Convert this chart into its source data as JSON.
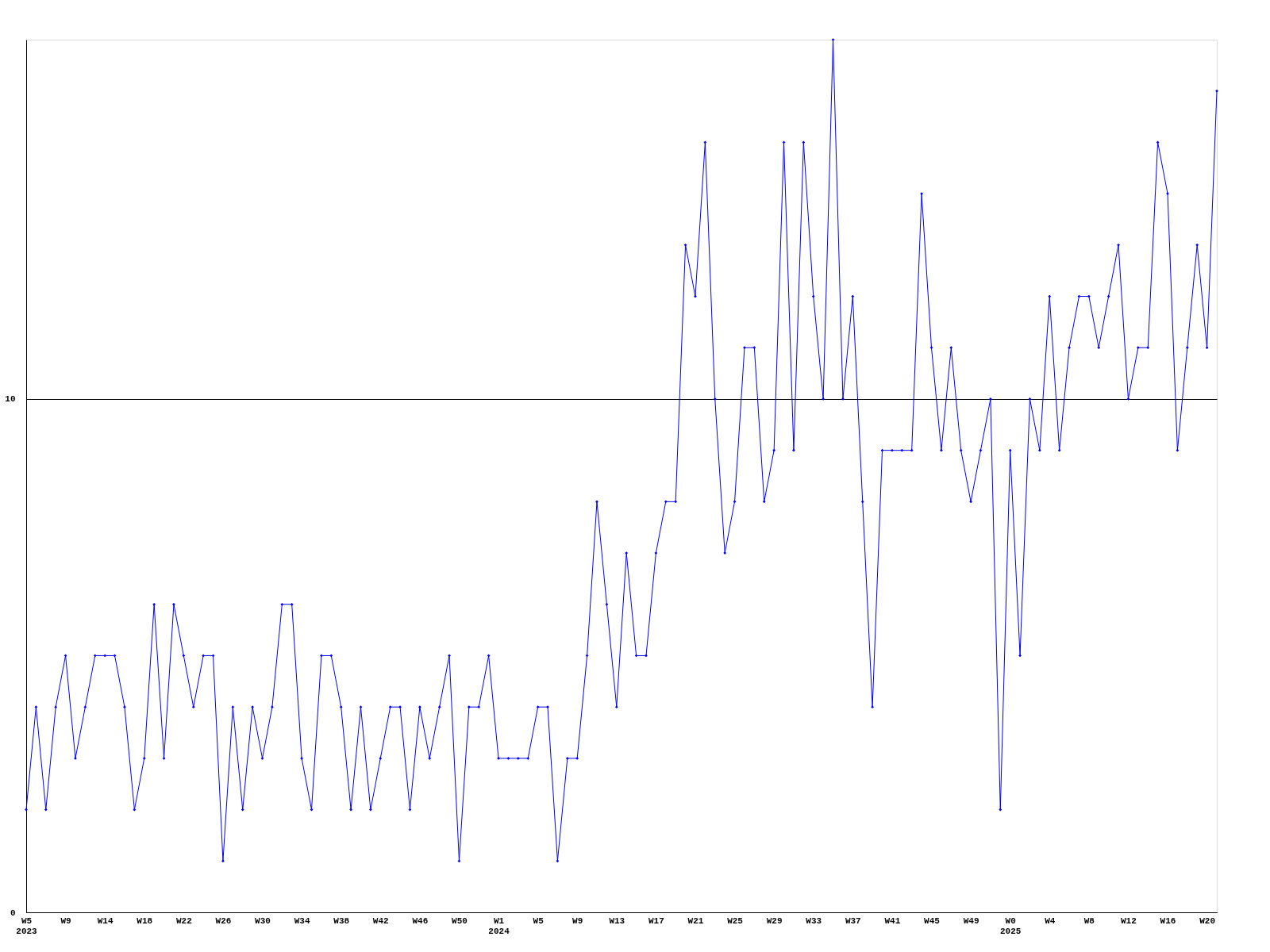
{
  "chart_data": {
    "type": "line",
    "categories": [
      "W5\n2023",
      null,
      null,
      null,
      "W9",
      null,
      null,
      null,
      "W14",
      null,
      null,
      null,
      "W18",
      null,
      null,
      null,
      "W22",
      null,
      null,
      null,
      "W26",
      null,
      null,
      null,
      "W30",
      null,
      null,
      null,
      "W34",
      null,
      null,
      null,
      "W38",
      null,
      null,
      null,
      "W42",
      null,
      null,
      null,
      "W46",
      null,
      null,
      null,
      "W50",
      null,
      null,
      null,
      "W1\n2024",
      null,
      null,
      null,
      "W5",
      null,
      null,
      null,
      "W9",
      null,
      null,
      null,
      "W13",
      null,
      null,
      null,
      "W17",
      null,
      null,
      null,
      "W21",
      null,
      null,
      null,
      "W25",
      null,
      null,
      null,
      "W29",
      null,
      null,
      null,
      "W33",
      null,
      null,
      null,
      "W37",
      null,
      null,
      null,
      "W41",
      null,
      null,
      null,
      "W45",
      null,
      null,
      null,
      "W49",
      null,
      null,
      null,
      "W0\n2025",
      null,
      null,
      null,
      "W4",
      null,
      null,
      null,
      "W8",
      null,
      null,
      null,
      "W12",
      null,
      null,
      null,
      "W16",
      null,
      null,
      null,
      "W20",
      null
    ],
    "series": [
      {
        "color": "#0000ff",
        "values": [
          2,
          4,
          2,
          4,
          5,
          3,
          4,
          5,
          5,
          5,
          4,
          2,
          3,
          6,
          3,
          6,
          5,
          4,
          5,
          5,
          1,
          4,
          2,
          4,
          3,
          4,
          6,
          6,
          3,
          2,
          5,
          5,
          4,
          2,
          4,
          2,
          3,
          4,
          4,
          2,
          4,
          3,
          4,
          5,
          1,
          4,
          4,
          5,
          3,
          3,
          3,
          3,
          4,
          4,
          1,
          3,
          3,
          5,
          8,
          6,
          4,
          7,
          5,
          5,
          7,
          8,
          8,
          13,
          12,
          15,
          10,
          7,
          8,
          11,
          11,
          8,
          9,
          15,
          9,
          15,
          12,
          10,
          17,
          10,
          12,
          8,
          4,
          9,
          9,
          9,
          9,
          14,
          11,
          9,
          11,
          9,
          8,
          9,
          10,
          2,
          9,
          5,
          10,
          9,
          12,
          9,
          11,
          12,
          12,
          11,
          12,
          13,
          10,
          11,
          11,
          15,
          14,
          9,
          11,
          13,
          11,
          16
        ]
      }
    ],
    "ylim": [
      0,
      17
    ],
    "yticks": [
      0,
      10
    ],
    "grid": "y",
    "marker": "diamond",
    "line_style": "solid"
  }
}
